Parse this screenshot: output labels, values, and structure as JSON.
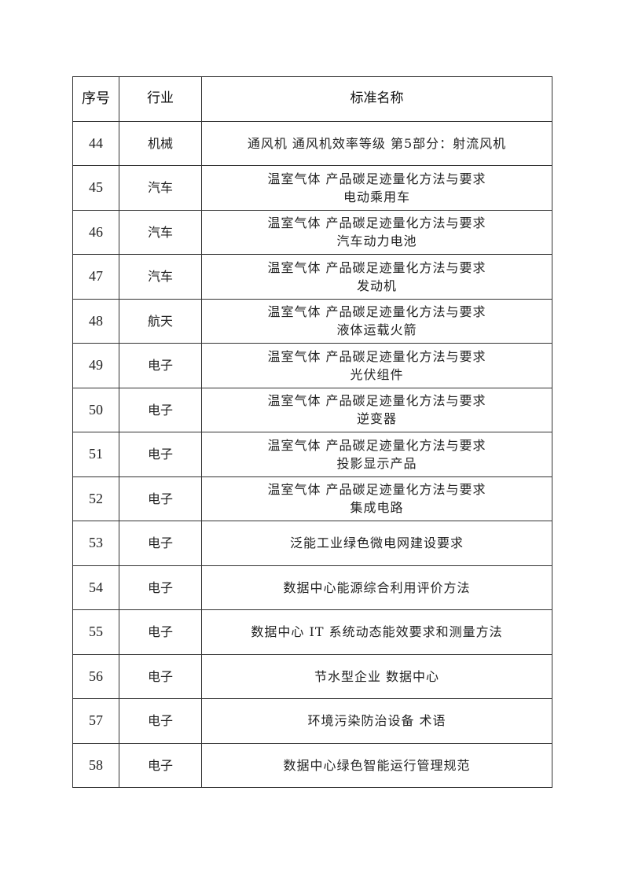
{
  "headers": {
    "no": "序号",
    "industry": "行业",
    "name": "标准名称"
  },
  "rows": [
    {
      "no": "44",
      "industry": "机械",
      "name": "通风机 通风机效率等级 第5部分：射流风机"
    },
    {
      "no": "45",
      "industry": "汽车",
      "name": "温室气体 产品碳足迹量化方法与要求\n电动乘用车"
    },
    {
      "no": "46",
      "industry": "汽车",
      "name": "温室气体 产品碳足迹量化方法与要求\n汽车动力电池"
    },
    {
      "no": "47",
      "industry": "汽车",
      "name": "温室气体 产品碳足迹量化方法与要求\n发动机"
    },
    {
      "no": "48",
      "industry": "航天",
      "name": "温室气体 产品碳足迹量化方法与要求\n液体运载火箭"
    },
    {
      "no": "49",
      "industry": "电子",
      "name": "温室气体 产品碳足迹量化方法与要求\n光伏组件"
    },
    {
      "no": "50",
      "industry": "电子",
      "name": "温室气体 产品碳足迹量化方法与要求\n逆变器"
    },
    {
      "no": "51",
      "industry": "电子",
      "name": "温室气体 产品碳足迹量化方法与要求\n投影显示产品"
    },
    {
      "no": "52",
      "industry": "电子",
      "name": "温室气体 产品碳足迹量化方法与要求\n集成电路"
    },
    {
      "no": "53",
      "industry": "电子",
      "name": "泛能工业绿色微电网建设要求"
    },
    {
      "no": "54",
      "industry": "电子",
      "name": "数据中心能源综合利用评价方法"
    },
    {
      "no": "55",
      "industry": "电子",
      "name": "数据中心 IT 系统动态能效要求和测量方法"
    },
    {
      "no": "56",
      "industry": "电子",
      "name": "节水型企业 数据中心"
    },
    {
      "no": "57",
      "industry": "电子",
      "name": "环境污染防治设备 术语"
    },
    {
      "no": "58",
      "industry": "电子",
      "name": "数据中心绿色智能运行管理规范"
    }
  ]
}
